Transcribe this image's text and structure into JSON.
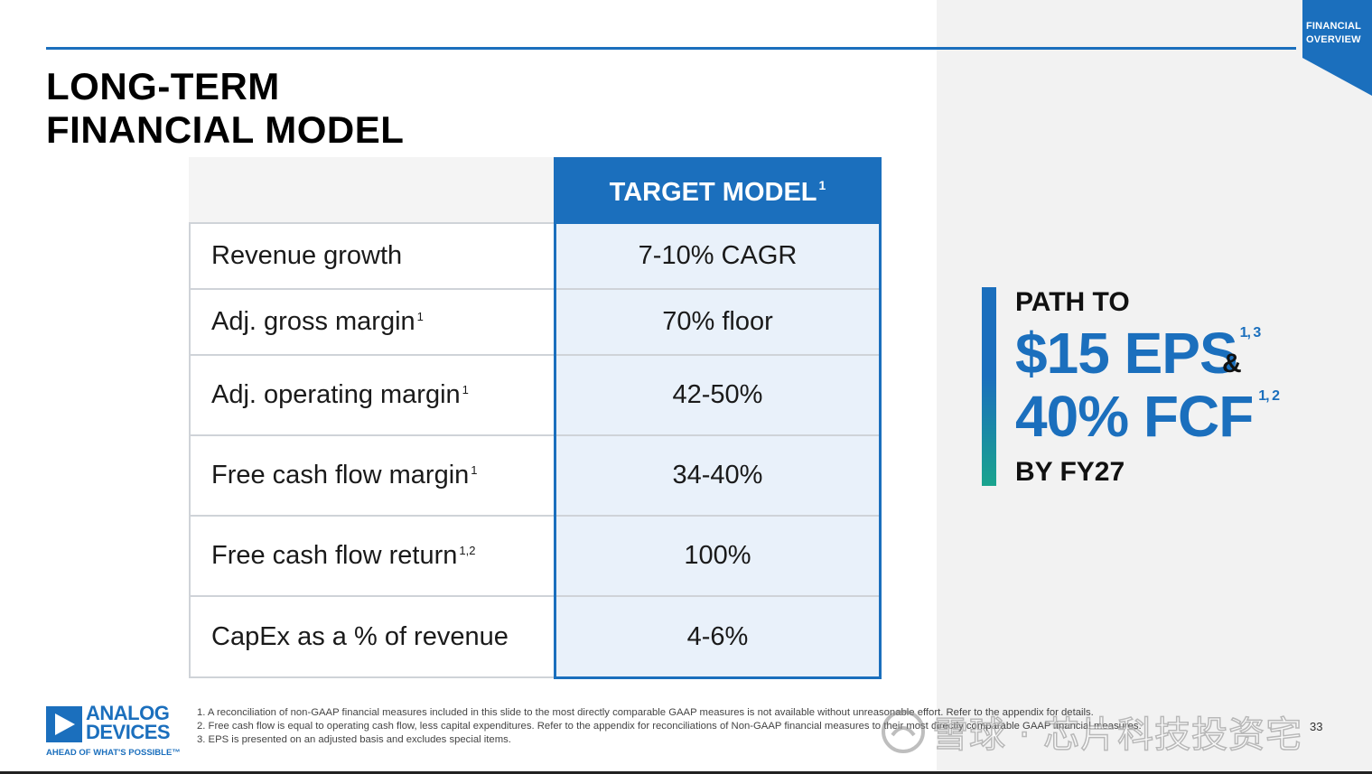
{
  "section_tab": {
    "line1": "FINANCIAL",
    "line2": "OVERVIEW"
  },
  "title": {
    "line1": "LONG-TERM",
    "line2": "FINANCIAL MODEL"
  },
  "table": {
    "header": {
      "label": "TARGET MODEL",
      "sup": "1"
    },
    "rows": [
      {
        "label": "Revenue growth",
        "sup": "",
        "value": "7-10% CAGR"
      },
      {
        "label": "Adj. gross margin",
        "sup": "1",
        "value": "70% floor"
      },
      {
        "label": "Adj. operating margin",
        "sup": "1",
        "value": "42-50%"
      },
      {
        "label": "Free cash flow margin",
        "sup": "1",
        "value": "34-40%"
      },
      {
        "label": "Free cash flow return",
        "sup": "1,2",
        "value": "100%"
      },
      {
        "label": "CapEx as a % of revenue",
        "sup": "",
        "value": "4-6%"
      }
    ]
  },
  "path": {
    "line1": "PATH TO",
    "eps": "$15 EPS",
    "eps_sup": "1, 3",
    "amp": "&",
    "fcf": "40% FCF",
    "fcf_sup": "1, 2",
    "line4": "BY FY27"
  },
  "logo": {
    "word1": "ANALOG",
    "word2": "DEVICES",
    "tagline": "AHEAD OF WHAT'S POSSIBLE™"
  },
  "footnotes": [
    "1. A reconciliation of non-GAAP financial measures included in this slide to the most directly comparable GAAP measures is not available without unreasonable effort. Refer to the appendix for details.",
    "2. Free cash flow is equal to operating cash flow, less capital expenditures. Refer to the appendix for reconciliations of Non-GAAP financial measures to their most directly comparable GAAP financial measures.",
    "3. EPS is presented on an adjusted basis and excludes special items."
  ],
  "page_number": "33",
  "watermark": "雪球 · 芯片科技投资宅",
  "colors": {
    "brand_blue": "#1b6fbd",
    "accent_green": "#1aa48e",
    "panel_grey": "#f2f2f2",
    "cell_blue": "#e9f1fa"
  }
}
